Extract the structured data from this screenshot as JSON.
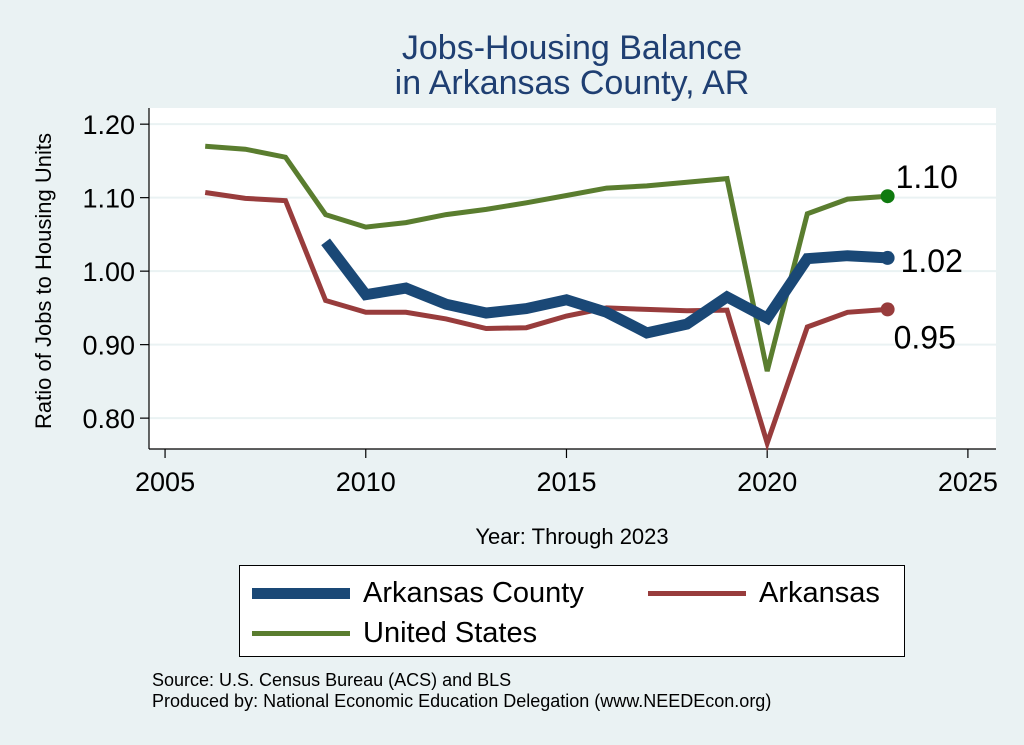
{
  "chart_data": {
    "type": "line",
    "title": [
      "Jobs-Housing Balance",
      "in Arkansas County, AR"
    ],
    "xlabel": "Year: Through 2023",
    "ylabel": "Ratio of Jobs to Housing Units",
    "xlim": [
      2005,
      2025
    ],
    "ylim": [
      0.8,
      1.2
    ],
    "x_ticks": [
      "2005",
      "2010",
      "2015",
      "2020",
      "2025"
    ],
    "y_ticks": [
      "0.80",
      "0.90",
      "1.00",
      "1.10",
      "1.20"
    ],
    "grid": true,
    "legend_position": "bottom",
    "series": [
      {
        "name": "Arkansas County",
        "color": "#1a4876",
        "x": [
          2009,
          2010,
          2011,
          2012,
          2013,
          2014,
          2015,
          2016,
          2017,
          2018,
          2019,
          2020,
          2021,
          2022,
          2023
        ],
        "y": [
          1.04,
          0.968,
          0.977,
          0.955,
          0.943,
          0.949,
          0.961,
          0.944,
          0.916,
          0.928,
          0.965,
          0.936,
          1.017,
          1.021,
          1.018
        ],
        "end_label": "1.02"
      },
      {
        "name": "Arkansas",
        "color": "#983c3c",
        "x": [
          2006,
          2007,
          2008,
          2009,
          2010,
          2011,
          2012,
          2013,
          2014,
          2015,
          2016,
          2017,
          2018,
          2019,
          2020,
          2021,
          2022,
          2023
        ],
        "y": [
          1.107,
          1.099,
          1.096,
          0.96,
          0.944,
          0.944,
          0.935,
          0.922,
          0.923,
          0.939,
          0.95,
          0.948,
          0.946,
          0.947,
          0.766,
          0.924,
          0.944,
          0.948
        ],
        "end_label": "0.95"
      },
      {
        "name": "United States",
        "color": "#5a7d2f",
        "end_marker_color": "#0f7a0f",
        "x": [
          2006,
          2007,
          2008,
          2009,
          2010,
          2011,
          2012,
          2013,
          2014,
          2015,
          2016,
          2017,
          2018,
          2019,
          2020,
          2021,
          2022,
          2023
        ],
        "y": [
          1.17,
          1.166,
          1.155,
          1.077,
          1.06,
          1.066,
          1.077,
          1.084,
          1.093,
          1.103,
          1.113,
          1.116,
          1.121,
          1.126,
          0.864,
          1.078,
          1.098,
          1.102
        ],
        "end_label": "1.10"
      }
    ]
  },
  "legend": {
    "items": [
      "Arkansas County",
      "Arkansas",
      "United States"
    ]
  },
  "footer": {
    "source": "Source: U.S. Census Bureau (ACS) and BLS",
    "produced_by": "Produced by: National Economic Education Delegation (www.NEEDEcon.org)"
  }
}
